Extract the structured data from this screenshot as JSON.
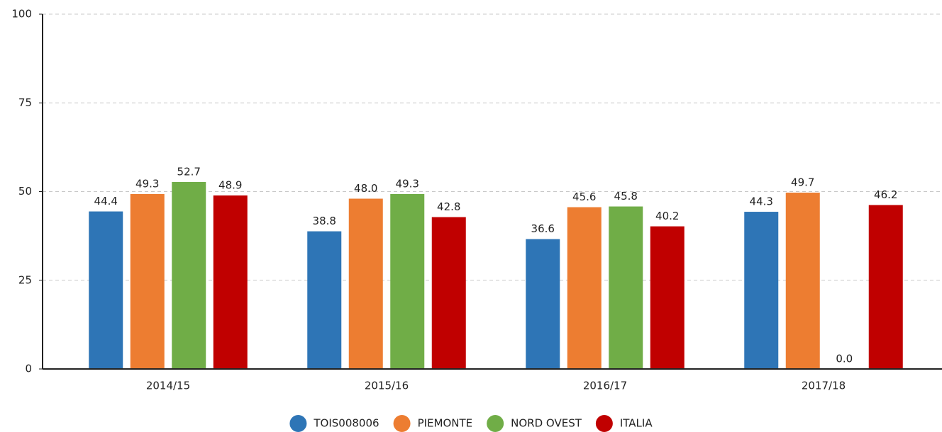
{
  "chart_data": {
    "type": "bar",
    "categories": [
      "2014/15",
      "2015/16",
      "2016/17",
      "2017/18"
    ],
    "series": [
      {
        "name": "TOIS008006",
        "color": "#2e75b6",
        "values": [
          44.4,
          38.8,
          36.6,
          44.3
        ],
        "value_labels": [
          "44.4",
          "38.8",
          "36.6",
          "44.3"
        ]
      },
      {
        "name": "PIEMONTE",
        "color": "#ed7d31",
        "values": [
          49.3,
          48.0,
          45.6,
          49.7
        ],
        "value_labels": [
          "49.3",
          "48.0",
          "45.6",
          "49.7"
        ]
      },
      {
        "name": "NORD OVEST",
        "color": "#70ad47",
        "values": [
          52.7,
          49.3,
          45.8,
          0.0
        ],
        "value_labels": [
          "52.7",
          "49.3",
          "45.8",
          "0.0"
        ]
      },
      {
        "name": "ITALIA",
        "color": "#c00000",
        "values": [
          48.9,
          42.8,
          40.2,
          46.2
        ],
        "value_labels": [
          "48.9",
          "42.8",
          "40.2",
          "46.2"
        ]
      }
    ],
    "ylim": [
      0,
      100
    ],
    "yticks": [
      0,
      25,
      50,
      75,
      100
    ],
    "grid": true,
    "legend": "bottom"
  }
}
